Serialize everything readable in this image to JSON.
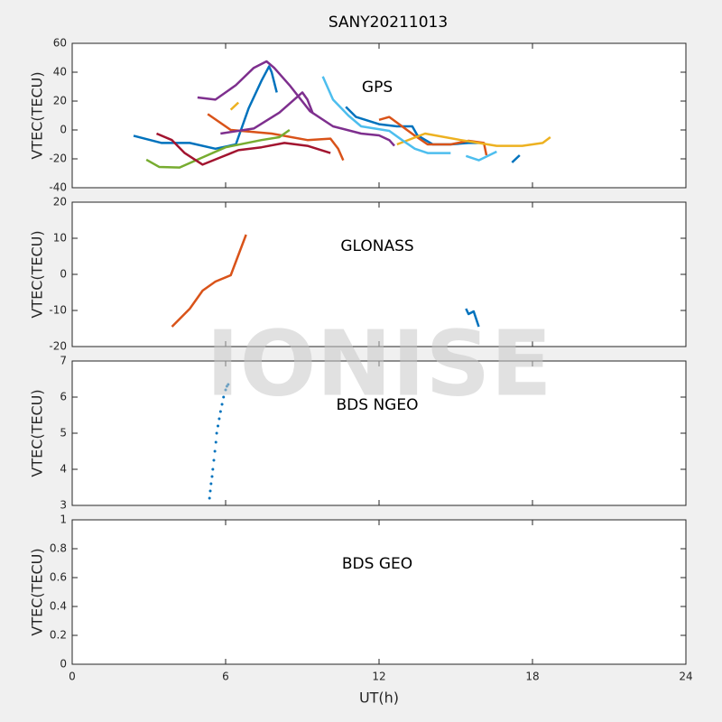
{
  "title": "SANY20211013",
  "watermark": "IONISE",
  "chart_data": [
    {
      "type": "line",
      "annotation": "GPS",
      "ylabel": "VTEC(TECU)",
      "xlim": [
        0,
        24
      ],
      "xticks": [
        0,
        6,
        12,
        18,
        24
      ],
      "xticklabels": false,
      "ylim": [
        -40,
        60
      ],
      "yticks": [
        -40,
        -20,
        0,
        20,
        40,
        60
      ],
      "series": [
        {
          "color": "#0072bd",
          "x": [
            2.4,
            3.5,
            4.6,
            5.6,
            6.4,
            6.9,
            7.4,
            7.7,
            7.8,
            8.0
          ],
          "values": [
            -4,
            -9,
            -9,
            -13,
            -10,
            15,
            34,
            44,
            40,
            26
          ]
        },
        {
          "color": "#0072bd",
          "x": [
            10.7,
            11.1,
            12,
            12.7,
            13.3,
            13.5,
            14.1,
            14.8,
            15.5,
            15.9
          ],
          "values": [
            16,
            9,
            4,
            2.5,
            2.5,
            -3.75,
            -10,
            -10,
            -9,
            -9
          ]
        },
        {
          "color": "#0072bd",
          "x": [
            17.2,
            17.5
          ],
          "values": [
            -22.5,
            -17.5
          ]
        },
        {
          "color": "#d95319",
          "x": [
            5.3,
            6.2,
            7.8,
            9.2,
            10.1,
            10.4,
            10.6
          ],
          "values": [
            11,
            0,
            -2.5,
            -7,
            -6,
            -13,
            -21
          ]
        },
        {
          "color": "#d95319",
          "x": [
            12,
            12.4,
            12.9,
            13.4,
            13.9,
            14.8,
            15.5,
            16.1,
            16.2
          ],
          "values": [
            7,
            9,
            2.5,
            -4,
            -10,
            -10,
            -7.5,
            -9,
            -17.5
          ]
        },
        {
          "color": "#edb120",
          "x": [
            6.2,
            6.5
          ],
          "values": [
            14,
            19
          ]
        },
        {
          "color": "#edb120",
          "x": [
            12.7,
            13.8,
            15.2,
            16.6,
            17.6,
            18.4,
            18.7
          ],
          "values": [
            -10,
            -2.5,
            -7,
            -11,
            -11,
            -9,
            -5
          ]
        },
        {
          "color": "#7e2f8e",
          "x": [
            4.9,
            5.6,
            6.4,
            7.1,
            7.6,
            7.9,
            8.5,
            9.3,
            10.2,
            11.3,
            12,
            12.4,
            12.6
          ],
          "values": [
            22.5,
            21,
            31,
            43,
            47.5,
            43,
            31,
            13,
            2.5,
            -2.5,
            -3.75,
            -7,
            -11
          ]
        },
        {
          "color": "#7e2f8e",
          "x": [
            5.8,
            7.1,
            8.1,
            9,
            9.2,
            9.4
          ],
          "values": [
            -2.5,
            1,
            12,
            26,
            21,
            12
          ]
        },
        {
          "color": "#77ac30",
          "x": [
            2.9,
            3.4,
            4.2,
            5.1,
            6,
            7.4,
            8.1,
            8.5
          ],
          "values": [
            -20.6,
            -25.6,
            -26,
            -19,
            -12,
            -7,
            -5,
            0
          ]
        },
        {
          "color": "#4dbeee",
          "x": [
            9.8,
            10.2,
            10.8,
            11.3,
            12.4,
            12.9,
            13.4,
            13.9,
            14.8
          ],
          "values": [
            37,
            21,
            10,
            2.5,
            -0.6,
            -7,
            -13,
            -16,
            -16
          ]
        },
        {
          "color": "#4dbeee",
          "x": [
            15.4,
            15.9,
            16.6
          ],
          "values": [
            -18,
            -21,
            -15
          ]
        },
        {
          "color": "#a2142f",
          "x": [
            3.3,
            3.9,
            4.4,
            5.1,
            5.8,
            6.5,
            7.4,
            8.3,
            9.2,
            10.1
          ],
          "values": [
            -2.5,
            -7,
            -16,
            -24,
            -19,
            -14,
            -12,
            -9,
            -11,
            -16
          ]
        }
      ]
    },
    {
      "type": "line",
      "annotation": "GLONASS",
      "ylabel": "VTEC(TECU)",
      "xlim": [
        0,
        24
      ],
      "xticks": [
        0,
        6,
        12,
        18,
        24
      ],
      "xticklabels": false,
      "ylim": [
        -20,
        20
      ],
      "yticks": [
        -20,
        -10,
        0,
        10,
        20
      ],
      "series": [
        {
          "color": "#d95319",
          "x": [
            3.9,
            4.6,
            5.1,
            5.6,
            6.2,
            6.4,
            6.8
          ],
          "values": [
            -14.5,
            -9.5,
            -4.5,
            -2,
            -0.25,
            3.5,
            11
          ]
        },
        {
          "color": "#0072bd",
          "x": [
            15.4,
            15.5,
            15.7,
            15.9
          ],
          "values": [
            -9.5,
            -11,
            -10.25,
            -14.5
          ]
        }
      ]
    },
    {
      "type": "scatter",
      "annotation": "BDS NGEO",
      "ylabel": "VTEC(TECU)",
      "xlim": [
        0,
        24
      ],
      "xticks": [
        0,
        6,
        12,
        18,
        24
      ],
      "xticklabels": false,
      "ylim": [
        3,
        7
      ],
      "yticks": [
        3,
        4,
        5,
        6,
        7
      ],
      "series": [
        {
          "color": "#0072bd",
          "x": [
            5.37,
            5.4,
            5.43,
            5.47,
            5.5,
            5.54,
            5.58,
            5.62,
            5.65,
            5.7,
            5.75,
            5.8,
            5.86,
            5.92,
            6.0,
            6.05,
            6.1
          ],
          "values": [
            3.2,
            3.4,
            3.6,
            3.8,
            4.0,
            4.25,
            4.5,
            4.75,
            5.0,
            5.2,
            5.4,
            5.6,
            5.8,
            6.0,
            6.2,
            6.3,
            6.35
          ]
        }
      ]
    },
    {
      "type": "line",
      "annotation": "BDS GEO",
      "ylabel": "VTEC(TECU)",
      "xlabel": "UT(h)",
      "xlim": [
        0,
        24
      ],
      "xticks": [
        0,
        6,
        12,
        18,
        24
      ],
      "xticklabels": true,
      "ylim": [
        0,
        1
      ],
      "yticks": [
        0,
        0.2,
        0.4,
        0.6,
        0.8,
        1
      ],
      "series": []
    }
  ]
}
